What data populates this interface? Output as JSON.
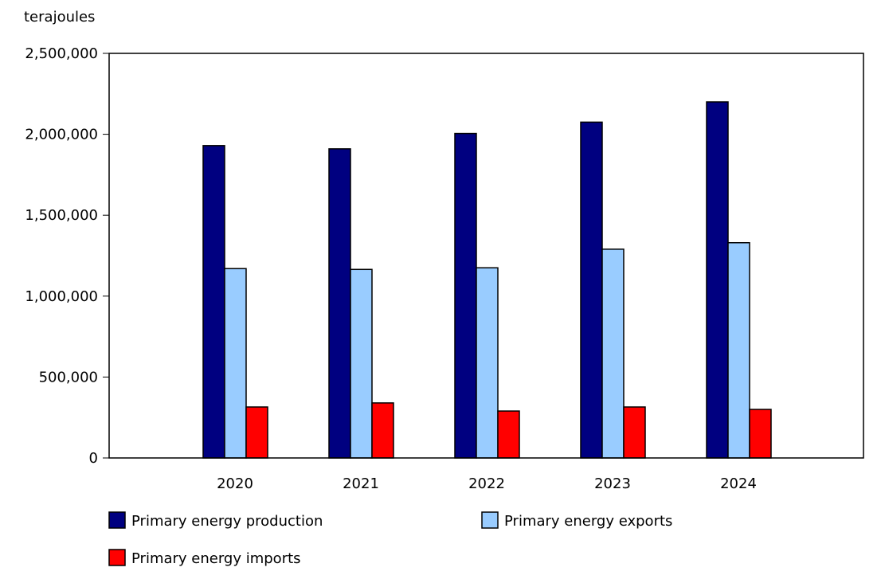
{
  "chart_data": {
    "type": "bar",
    "ylabel": "terajoules",
    "categories": [
      "2020",
      "2021",
      "2022",
      "2023",
      "2024"
    ],
    "ylim": [
      0,
      2500000
    ],
    "yticks": [
      "0",
      "500,000",
      "1,000,000",
      "1,500,000",
      "2,000,000",
      "2,500,000"
    ],
    "ytick_values": [
      0,
      500000,
      1000000,
      1500000,
      2000000,
      2500000
    ],
    "grid": false,
    "legend_position": "bottom",
    "series": [
      {
        "name": "Primary energy production",
        "color": "#000080",
        "values": [
          1930000,
          1910000,
          2005000,
          2075000,
          2200000
        ]
      },
      {
        "name": "Primary energy exports",
        "color": "#99ccff",
        "values": [
          1170000,
          1165000,
          1175000,
          1290000,
          1330000
        ]
      },
      {
        "name": "Primary energy imports",
        "color": "#ff0000",
        "values": [
          315000,
          340000,
          290000,
          315000,
          300000
        ]
      }
    ]
  }
}
